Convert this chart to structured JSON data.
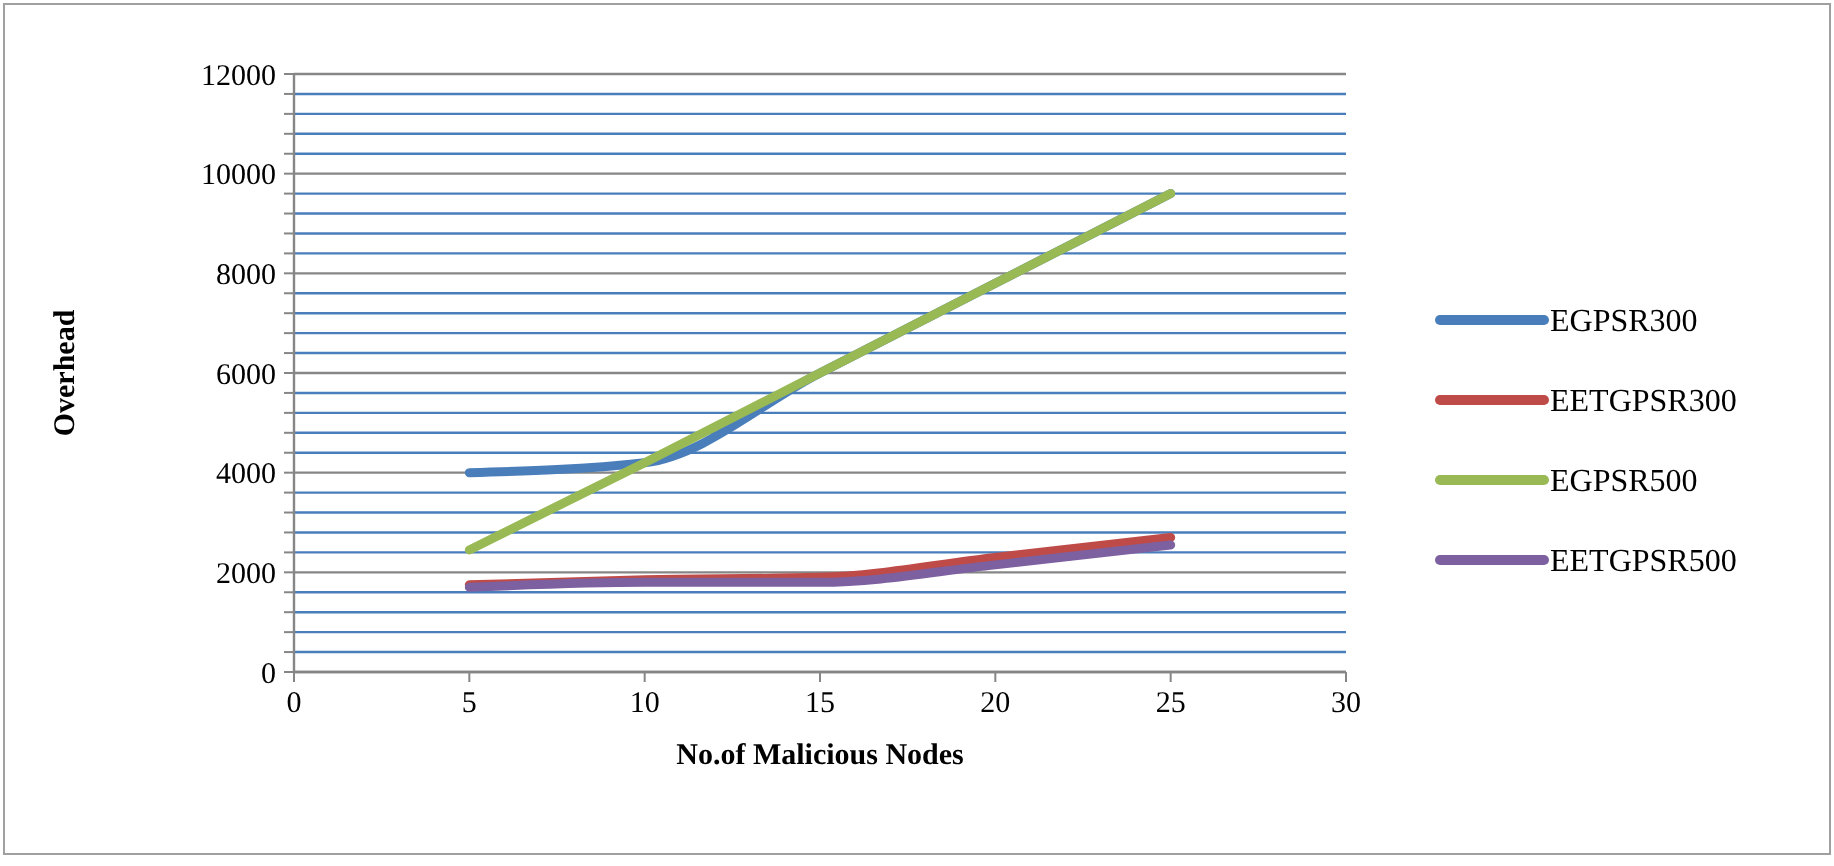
{
  "chart_data": {
    "type": "line",
    "xlabel": "No.of Malicious Nodes",
    "ylabel": "Overhead",
    "x": [
      5,
      10,
      15,
      20,
      25
    ],
    "series": [
      {
        "name": "EGPSR300",
        "color": "#4a7ebb",
        "values": [
          4000,
          4200,
          6000,
          7800,
          9600
        ]
      },
      {
        "name": "EETGPSR300",
        "color": "#be4b48",
        "values": [
          1750,
          1850,
          1900,
          2300,
          2700
        ]
      },
      {
        "name": "EGPSR500",
        "color": "#98b954",
        "values": [
          2450,
          4200,
          6000,
          7800,
          9600
        ]
      },
      {
        "name": "EETGPSR500",
        "color": "#7d60a0",
        "values": [
          1700,
          1800,
          1800,
          2150,
          2550
        ]
      }
    ],
    "xlim": [
      0,
      30
    ],
    "xticks": [
      0,
      5,
      10,
      15,
      20,
      25,
      30
    ],
    "ylim": [
      0,
      12000
    ],
    "yticks": [
      0,
      {
        "value": 400,
        "label": null
      },
      {
        "value": 800,
        "label": null
      },
      {
        "value": 1200,
        "label": null
      },
      {
        "value": 1600,
        "label": null
      },
      2000,
      {
        "value": 2400,
        "label": null
      },
      {
        "value": 2800,
        "label": null
      },
      {
        "value": 3200,
        "label": null
      },
      {
        "value": 3600,
        "label": null
      },
      4000,
      {
        "value": 4400,
        "label": null
      },
      {
        "value": 4800,
        "label": null
      },
      {
        "value": 5200,
        "label": null
      },
      {
        "value": 5600,
        "label": null
      },
      6000,
      {
        "value": 6400,
        "label": null
      },
      {
        "value": 6800,
        "label": null
      },
      {
        "value": 7200,
        "label": null
      },
      {
        "value": 7600,
        "label": null
      },
      8000,
      {
        "value": 8400,
        "label": null
      },
      {
        "value": 8800,
        "label": null
      },
      {
        "value": 9200,
        "label": null
      },
      {
        "value": 9600,
        "label": null
      },
      10000,
      {
        "value": 10400,
        "label": null
      },
      {
        "value": 10800,
        "label": null
      },
      {
        "value": 11200,
        "label": null
      },
      {
        "value": 11600,
        "label": null
      },
      12000
    ],
    "grid": "y",
    "legend": "right",
    "marker": "none",
    "line_style": "solid"
  }
}
